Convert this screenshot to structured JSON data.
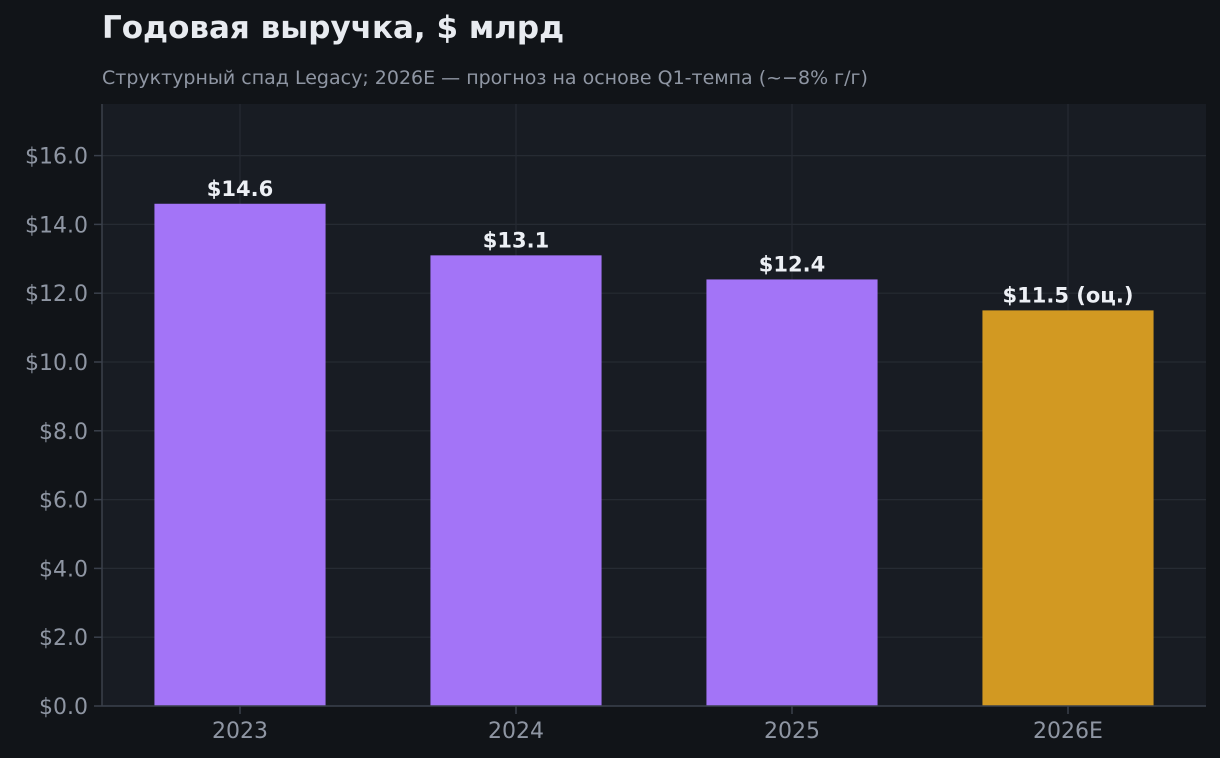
{
  "chart_data": {
    "type": "bar",
    "title": "Годовая выручка, $ млрд",
    "subtitle": "Структурный спад Legacy; 2026E — прогноз на основе Q1-темпа (~−8% г/г)",
    "xlabel": "",
    "ylabel": "",
    "categories": [
      "2023",
      "2024",
      "2025",
      "2026E"
    ],
    "values": [
      14.6,
      13.1,
      12.4,
      11.5
    ],
    "data_labels": [
      "$14.6",
      "$13.1",
      "$12.4",
      "$11.5 (оц.)"
    ],
    "estimated": [
      false,
      false,
      false,
      true
    ],
    "ylim": [
      0,
      17.5
    ],
    "y_ticks": [
      0,
      2,
      4,
      6,
      8,
      10,
      12,
      14,
      16
    ],
    "y_tick_labels": [
      "$0.0",
      "$2.0",
      "$4.0",
      "$6.0",
      "$8.0",
      "$10.0",
      "$12.0",
      "$14.0",
      "$16.0"
    ],
    "grid": true,
    "legend": "none",
    "colors": {
      "actual": "#a374f7",
      "estimate": "#d29922",
      "page_background": "#111418",
      "plot_background": "#181c23",
      "grid": "#262b33",
      "axis": "#3a404b",
      "title": "#e8ebf0",
      "subtitle": "#8f96a3",
      "tick_label": "#8f96a3",
      "data_label": "#edf0f5"
    }
  }
}
